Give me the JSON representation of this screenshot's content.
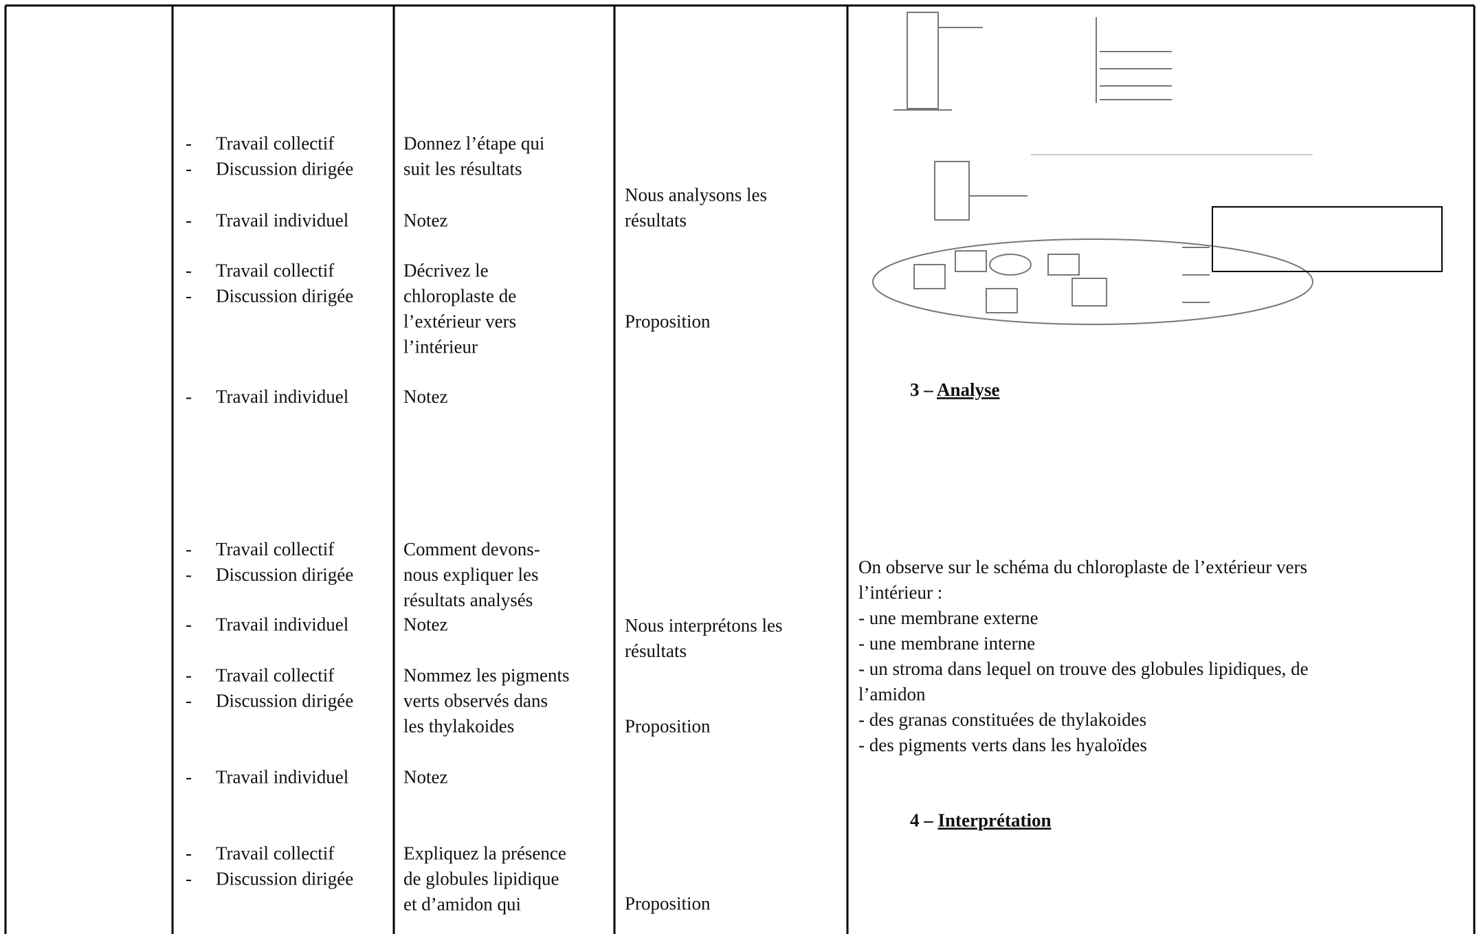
{
  "table": {
    "methods": [
      [
        "Travail collectif",
        "Discussion dirigée"
      ],
      [
        "Travail individuel"
      ],
      [
        "Travail collectif",
        "Discussion dirigée"
      ],
      [
        "Travail individuel"
      ],
      [
        "Travail collectif",
        "Discussion dirigée"
      ],
      [
        "Travail individuel"
      ],
      [
        "Travail collectif",
        "Discussion dirigée"
      ],
      [
        "Travail individuel"
      ],
      [
        "Travail collectif",
        "Discussion dirigée"
      ]
    ],
    "bullet": "-",
    "prompts": [
      [
        "Donnez l’étape qui",
        "suit les résultats"
      ],
      [
        "Notez"
      ],
      [
        "Décrivez le",
        "chloroplaste de",
        "l’extérieur vers",
        "l’intérieur"
      ],
      [
        "Notez"
      ],
      [
        "Comment devons-",
        "nous expliquer les",
        "résultats analysés"
      ],
      [
        "Notez"
      ],
      [
        "Nommez les pigments",
        "verts observés dans",
        "les thylakoides"
      ],
      [
        "Notez"
      ],
      [
        "Expliquez la présence",
        "de globules lipidique",
        "et d’amidon qui"
      ]
    ],
    "steps": [
      [
        "Nous analysons les",
        "résultats"
      ],
      [
        "Proposition"
      ],
      [
        "Nous interprétons les",
        "résultats"
      ],
      [
        "Proposition"
      ],
      [
        "Proposition"
      ]
    ],
    "sections": [
      {
        "number": "3 –",
        "title": "Analyse"
      },
      {
        "number": "4 –",
        "title": "Interprétation"
      }
    ],
    "analysis": [
      "On observe sur le schéma du chloroplaste de l’extérieur vers",
      "l’intérieur :",
      "- une membrane externe",
      "- une membrane interne",
      "- un stroma dans lequel on trouve des globules lipidiques, de",
      "l’amidon",
      "- des granas constituées de thylakoides",
      "- des pigments verts dans les hyaloïdes"
    ]
  }
}
